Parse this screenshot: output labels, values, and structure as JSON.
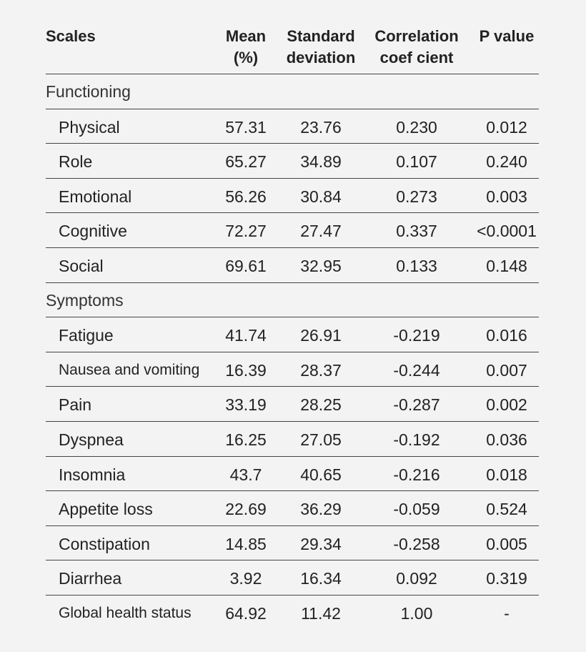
{
  "table": {
    "header": [
      [
        "Scales"
      ],
      [
        "Mean",
        "(%)"
      ],
      [
        "Standard",
        "deviation"
      ],
      [
        "Correlation",
        "coef cient"
      ],
      [
        "P value"
      ]
    ],
    "sections": [
      {
        "title": "Functioning",
        "rows": [
          [
            "Physical",
            "57.31",
            "23.76",
            "0.230",
            "0.012"
          ],
          [
            "Role",
            "65.27",
            "34.89",
            "0.107",
            "0.240"
          ],
          [
            "Emotional",
            "56.26",
            "30.84",
            "0.273",
            "0.003"
          ],
          [
            "Cognitive",
            "72.27",
            "27.47",
            "0.337",
            "<0.0001"
          ],
          [
            "Social",
            "69.61",
            "32.95",
            "0.133",
            "0.148"
          ]
        ]
      },
      {
        "title": "Symptoms",
        "rows": [
          [
            "Fatigue",
            "41.74",
            "26.91",
            "-0.219",
            "0.016"
          ],
          [
            "Nausea and vomiting",
            "16.39",
            "28.37",
            "-0.244",
            "0.007"
          ],
          [
            "Pain",
            "33.19",
            "28.25",
            "-0.287",
            "0.002"
          ],
          [
            "Dyspnea",
            "16.25",
            "27.05",
            "-0.192",
            "0.036"
          ],
          [
            "Insomnia",
            "43.7",
            "40.65",
            "-0.216",
            "0.018"
          ],
          [
            "Appetite loss",
            "22.69",
            "36.29",
            "-0.059",
            "0.524"
          ],
          [
            "Constipation",
            "14.85",
            "29.34",
            "-0.258",
            "0.005"
          ],
          [
            "Diarrhea",
            "3.92",
            "16.34",
            "0.092",
            "0.319"
          ],
          [
            "Global health status",
            "64.92",
            "11.42",
            "1.00",
            "-"
          ]
        ]
      }
    ]
  }
}
